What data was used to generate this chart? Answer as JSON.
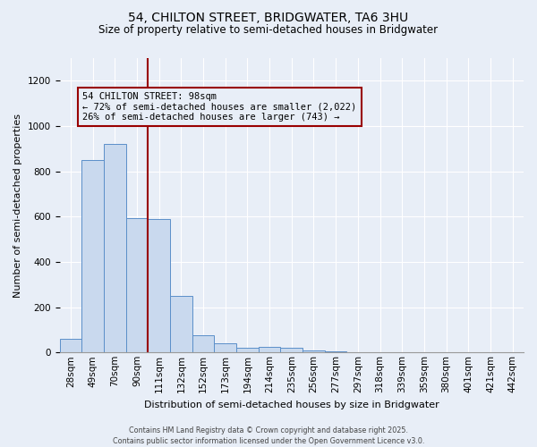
{
  "title1": "54, CHILTON STREET, BRIDGWATER, TA6 3HU",
  "title2": "Size of property relative to semi-detached houses in Bridgwater",
  "xlabel": "Distribution of semi-detached houses by size in Bridgwater",
  "ylabel": "Number of semi-detached properties",
  "footnote": "Contains HM Land Registry data © Crown copyright and database right 2025.\nContains public sector information licensed under the Open Government Licence v3.0.",
  "categories": [
    "28sqm",
    "49sqm",
    "70sqm",
    "90sqm",
    "111sqm",
    "132sqm",
    "152sqm",
    "173sqm",
    "194sqm",
    "214sqm",
    "235sqm",
    "256sqm",
    "277sqm",
    "297sqm",
    "318sqm",
    "339sqm",
    "359sqm",
    "380sqm",
    "401sqm",
    "421sqm",
    "442sqm"
  ],
  "values": [
    60,
    850,
    920,
    595,
    590,
    250,
    75,
    40,
    20,
    25,
    20,
    10,
    5,
    0,
    0,
    0,
    0,
    0,
    0,
    0,
    0
  ],
  "bar_color": "#c9d9ee",
  "bar_edge_color": "#5b8fc9",
  "vline_x": 3.5,
  "vline_color": "#990000",
  "annotation_text": "54 CHILTON STREET: 98sqm\n← 72% of semi-detached houses are smaller (2,022)\n26% of semi-detached houses are larger (743) →",
  "ylim": [
    0,
    1300
  ],
  "yticks": [
    0,
    200,
    400,
    600,
    800,
    1000,
    1200
  ],
  "background_color": "#e8eef7",
  "grid_color": "#ffffff",
  "annotation_box_edge_color": "#990000",
  "annotation_font_size": 7.5,
  "title1_fontsize": 10,
  "title2_fontsize": 8.5,
  "xlabel_fontsize": 8,
  "ylabel_fontsize": 8,
  "tick_fontsize": 7.5,
  "footnote_fontsize": 5.8
}
